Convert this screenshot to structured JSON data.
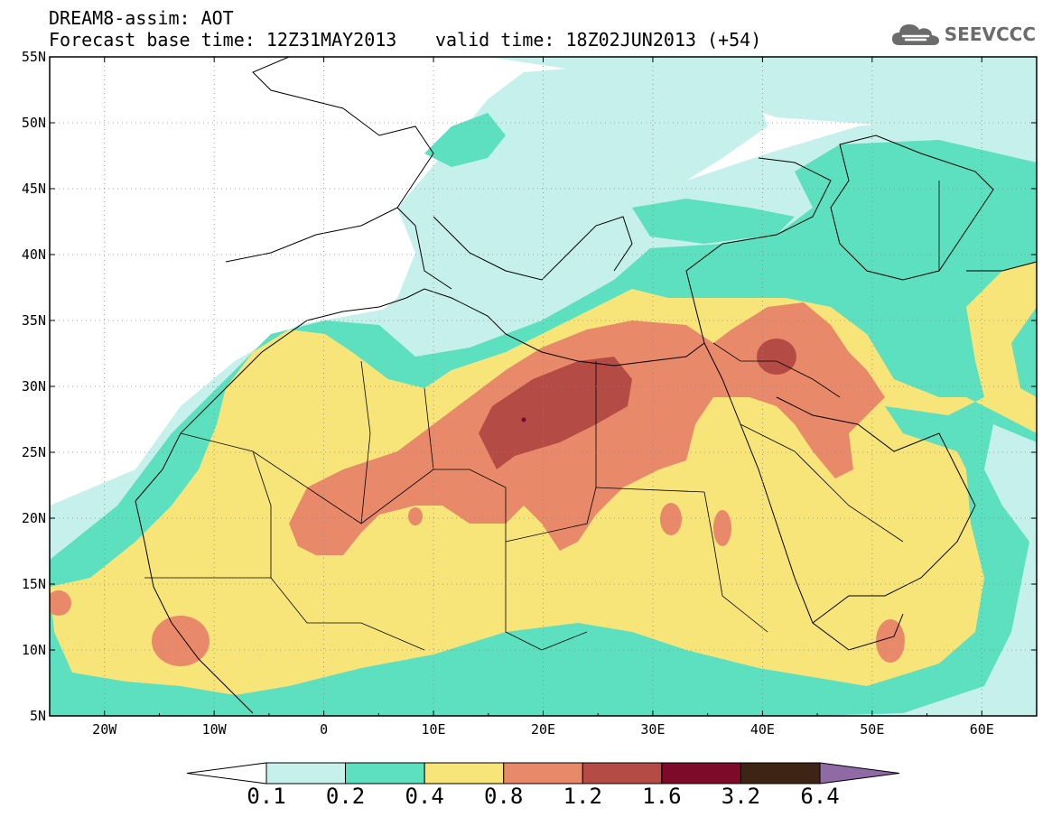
{
  "header": {
    "title": "DREAM8-assim: AOT",
    "base_time": "Forecast base time: 12Z31MAY2013",
    "valid_time": "valid time: 18Z02JUN2013 (+54)"
  },
  "logo": {
    "text": "SEEVCCC",
    "icon": "cloud-icon"
  },
  "map": {
    "lon_range": [
      -25,
      65
    ],
    "lat_range": [
      5,
      55
    ],
    "lat_ticks": [
      "55N",
      "50N",
      "45N",
      "40N",
      "35N",
      "30N",
      "25N",
      "20N",
      "15N",
      "10N",
      "5N"
    ],
    "lon_ticks": [
      "20W",
      "10W",
      "0",
      "10E",
      "20E",
      "30E",
      "40E",
      "50E",
      "60E"
    ]
  },
  "colorbar": {
    "labels": [
      "0.1",
      "0.2",
      "0.4",
      "0.8",
      "1.2",
      "1.6",
      "3.2",
      "6.4"
    ],
    "colors": [
      "#c5f0ec",
      "#5ce0bf",
      "#f7e57a",
      "#e8896a",
      "#b54b45",
      "#7d0a28",
      "#3e2414",
      "#8f6aa5"
    ],
    "low_color": "#ffffff"
  }
}
